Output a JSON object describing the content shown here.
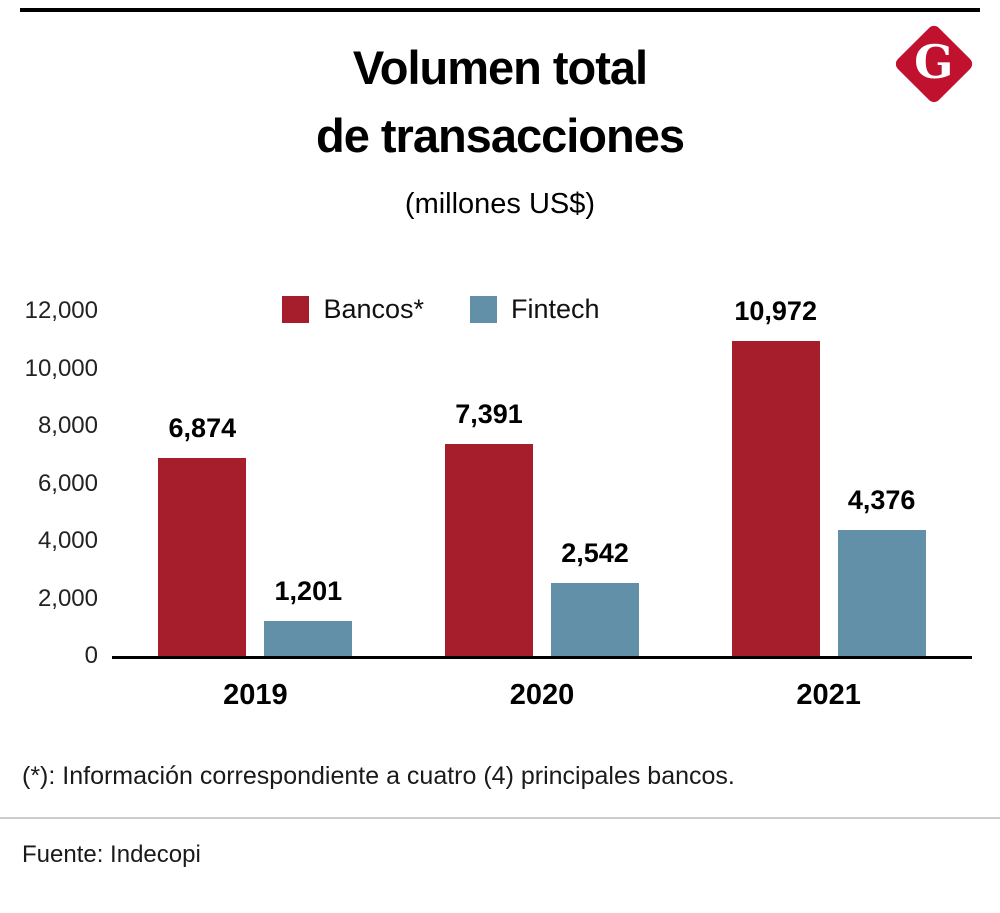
{
  "brand": {
    "logo_letter": "G",
    "logo_color": "#C0122F"
  },
  "header": {
    "title_line1": "Volumen total",
    "title_line2": "de transacciones",
    "subtitle": "(millones US$)"
  },
  "chart_data": {
    "type": "bar",
    "title": "Volumen total de transacciones",
    "subtitle": "(millones US$)",
    "categories": [
      "2019",
      "2020",
      "2021"
    ],
    "series": [
      {
        "name": "Bancos*",
        "color": "#A61E2C",
        "values": [
          6874,
          7391,
          10972
        ],
        "labels": [
          "6,874",
          "7,391",
          "10,972"
        ]
      },
      {
        "name": "Fintech",
        "color": "#6290A8",
        "values": [
          1201,
          2542,
          4376
        ],
        "labels": [
          "1,201",
          "2,542",
          "4,376"
        ]
      }
    ],
    "ylim": [
      0,
      12000
    ],
    "yticks": [
      0,
      2000,
      4000,
      6000,
      8000,
      10000,
      12000
    ],
    "ytick_labels": [
      "0",
      "2,000",
      "4,000",
      "6,000",
      "8,000",
      "10,000",
      "12,000"
    ],
    "grid": false,
    "legend_position": "top"
  },
  "footnote": "(*): Información correspondiente a cuatro (4) principales bancos.",
  "source": "Fuente: Indecopi"
}
